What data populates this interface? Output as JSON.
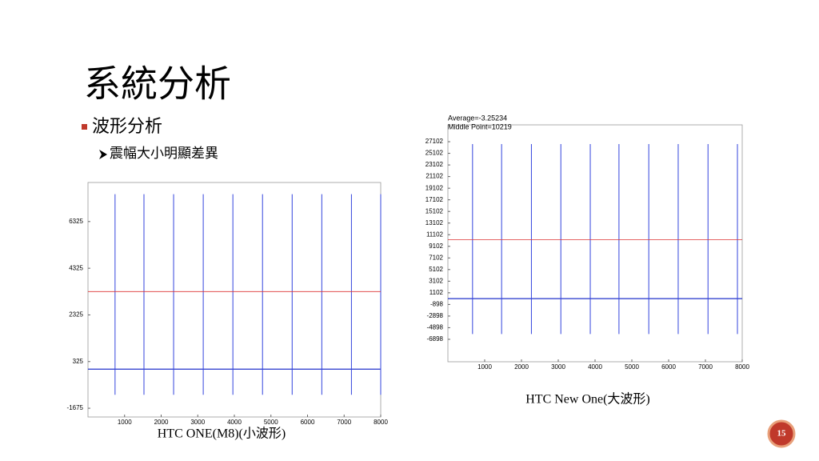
{
  "title": "系統分析",
  "bullet": "波形分析",
  "sub_bullet": "震幅大小明顯差異",
  "page_number": "15",
  "charts": [
    {
      "caption": "HTC ONE(M8)(小波形)",
      "xlim": [
        0,
        8000
      ],
      "ylim": [
        -2050,
        8000
      ],
      "xticks": [
        1000,
        2000,
        3000,
        4000,
        5000,
        6000,
        7000,
        8000
      ],
      "yticks": [
        -1675,
        325,
        2325,
        4325,
        6325
      ],
      "mean_line": 3325,
      "baseline": 0,
      "spike_x": [
        740,
        1530,
        2340,
        3150,
        3960,
        4770,
        5580,
        6390,
        7200,
        8000
      ],
      "spike_high": [
        7500,
        7500,
        7500,
        7500,
        7500,
        7500,
        7500,
        7500,
        7500,
        7500
      ],
      "spike_low": [
        -1100,
        -1100,
        -1100,
        -1100,
        -1100,
        -1100,
        -1100,
        -1100,
        -1100,
        -1100
      ]
    },
    {
      "caption": "HTC New One(大波形)",
      "annotations": [
        "Average=-3.25234",
        "Middle Point=10219"
      ],
      "xlim": [
        0,
        8000
      ],
      "ylim": [
        -10760,
        30000
      ],
      "xticks": [
        1000,
        2000,
        3000,
        4000,
        5000,
        6000,
        7000,
        8000
      ],
      "yticks": [
        27102,
        25102,
        23102,
        21102,
        19102,
        17102,
        15102,
        13102,
        11102,
        9102,
        7102,
        5102,
        3102,
        1102,
        -898,
        -2898,
        -4898,
        -6898
      ],
      "mean_line": 10219,
      "baseline": 100,
      "spike_x": [
        670,
        1460,
        2270,
        3070,
        3870,
        4650,
        5460,
        6260,
        7070,
        7870
      ],
      "spike_high": [
        26700,
        26700,
        26700,
        26700,
        26700,
        26700,
        26700,
        26700,
        26700,
        26700
      ],
      "spike_low": [
        -6000,
        -6000,
        -6000,
        -6000,
        -6000,
        -6000,
        -6000,
        -6000,
        -6000,
        -6000
      ]
    }
  ]
}
